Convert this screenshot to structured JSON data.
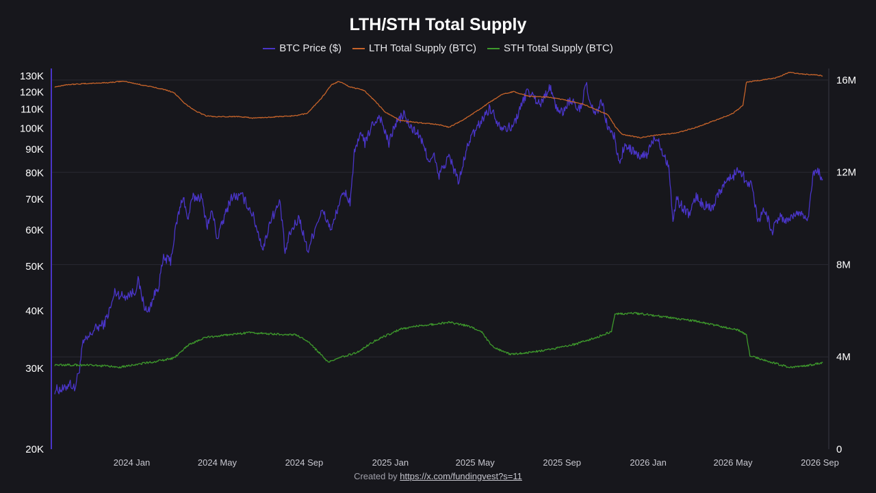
{
  "chart_data": {
    "type": "line",
    "title": "LTH/STH Total Supply",
    "x_ticks": [
      "2024 Jan",
      "2024 May",
      "2024 Sep",
      "2025 Jan",
      "2025 May",
      "2025 Sep",
      "2026 Jan",
      "2026 May",
      "2026 Sep"
    ],
    "y_left": {
      "scale": "log",
      "range": [
        20000,
        135000
      ],
      "ticks": [
        {
          "value": 20000,
          "label": "20K"
        },
        {
          "value": 30000,
          "label": "30K"
        },
        {
          "value": 40000,
          "label": "40K"
        },
        {
          "value": 50000,
          "label": "50K"
        },
        {
          "value": 60000,
          "label": "60K"
        },
        {
          "value": 70000,
          "label": "70K"
        },
        {
          "value": 80000,
          "label": "80K"
        },
        {
          "value": 90000,
          "label": "90K"
        },
        {
          "value": 100000,
          "label": "100K"
        },
        {
          "value": 110000,
          "label": "110K"
        },
        {
          "value": 120000,
          "label": "120K"
        },
        {
          "value": 130000,
          "label": "130K"
        }
      ]
    },
    "y_right": {
      "scale": "linear",
      "range": [
        0,
        16500000
      ],
      "ticks": [
        {
          "value": 0,
          "label": "0"
        },
        {
          "value": 4000000,
          "label": "4M"
        },
        {
          "value": 8000000,
          "label": "8M"
        },
        {
          "value": 12000000,
          "label": "12M"
        },
        {
          "value": 16000000,
          "label": "16M"
        }
      ]
    },
    "grid": "horizontal",
    "legend_position": "top-center",
    "series": [
      {
        "name": "BTC Price ($)",
        "axis": "left",
        "color": "#4a35c9",
        "points": [
          [
            "2023-09-14",
            27000
          ],
          [
            "2023-09-28",
            27000
          ],
          [
            "2023-10-05",
            28000
          ],
          [
            "2023-10-12",
            27000
          ],
          [
            "2023-10-19",
            30000
          ],
          [
            "2023-10-24",
            34000
          ],
          [
            "2023-11-01",
            35000
          ],
          [
            "2023-11-09",
            36500
          ],
          [
            "2023-11-16",
            37000
          ],
          [
            "2023-11-23",
            37500
          ],
          [
            "2023-12-04",
            41500
          ],
          [
            "2023-12-08",
            44000
          ],
          [
            "2023-12-20",
            43000
          ],
          [
            "2024-01-05",
            44000
          ],
          [
            "2024-01-10",
            46500
          ],
          [
            "2024-01-18",
            41500
          ],
          [
            "2024-01-23",
            39500
          ],
          [
            "2024-02-01",
            43000
          ],
          [
            "2024-02-08",
            45500
          ],
          [
            "2024-02-15",
            52000
          ],
          [
            "2024-02-25",
            51500
          ],
          [
            "2024-03-05",
            63000
          ],
          [
            "2024-03-14",
            71500
          ],
          [
            "2024-03-20",
            63000
          ],
          [
            "2024-03-27",
            70500
          ],
          [
            "2024-04-08",
            71000
          ],
          [
            "2024-04-17",
            61500
          ],
          [
            "2024-04-24",
            66000
          ],
          [
            "2024-05-01",
            57500
          ],
          [
            "2024-05-08",
            62000
          ],
          [
            "2024-05-21",
            71000
          ],
          [
            "2024-06-06",
            71000
          ],
          [
            "2024-06-20",
            65000
          ],
          [
            "2024-07-05",
            54500
          ],
          [
            "2024-07-15",
            63000
          ],
          [
            "2024-07-29",
            69000
          ],
          [
            "2024-08-05",
            53500
          ],
          [
            "2024-08-12",
            59000
          ],
          [
            "2024-08-25",
            64000
          ],
          [
            "2024-09-06",
            54000
          ],
          [
            "2024-09-20",
            63000
          ],
          [
            "2024-09-27",
            66000
          ],
          [
            "2024-10-10",
            60000
          ],
          [
            "2024-10-20",
            68500
          ],
          [
            "2024-10-29",
            72500
          ],
          [
            "2024-11-05",
            69000
          ],
          [
            "2024-11-11",
            88000
          ],
          [
            "2024-11-22",
            98500
          ],
          [
            "2024-11-26",
            92000
          ],
          [
            "2024-12-05",
            101000
          ],
          [
            "2024-12-17",
            106500
          ],
          [
            "2024-12-30",
            92500
          ],
          [
            "2025-01-07",
            101500
          ],
          [
            "2025-01-20",
            107500
          ],
          [
            "2025-01-28",
            101000
          ],
          [
            "2025-02-10",
            97000
          ],
          [
            "2025-02-26",
            84500
          ],
          [
            "2025-03-04",
            87000
          ],
          [
            "2025-03-10",
            78500
          ],
          [
            "2025-03-25",
            87000
          ],
          [
            "2025-04-08",
            76500
          ],
          [
            "2025-04-22",
            93500
          ],
          [
            "2025-05-10",
            104000
          ],
          [
            "2025-05-22",
            111000
          ],
          [
            "2025-06-05",
            101500
          ],
          [
            "2025-06-22",
            100000
          ],
          [
            "2025-07-03",
            109500
          ],
          [
            "2025-07-14",
            121000
          ],
          [
            "2025-07-25",
            116000
          ],
          [
            "2025-08-02",
            113000
          ],
          [
            "2025-08-14",
            123500
          ],
          [
            "2025-08-25",
            110500
          ],
          [
            "2025-09-01",
            108000
          ],
          [
            "2025-09-12",
            115500
          ],
          [
            "2025-09-26",
            109500
          ],
          [
            "2025-10-06",
            124500
          ],
          [
            "2025-10-11",
            111000
          ],
          [
            "2025-10-20",
            108000
          ],
          [
            "2025-10-27",
            114500
          ],
          [
            "2025-11-04",
            101500
          ],
          [
            "2025-11-14",
            95500
          ],
          [
            "2025-11-21",
            84000
          ],
          [
            "2025-11-28",
            91000
          ],
          [
            "2025-12-08",
            90000
          ],
          [
            "2025-12-18",
            86500
          ],
          [
            "2025-12-30",
            87500
          ],
          [
            "2026-01-06",
            93000
          ],
          [
            "2026-01-14",
            96000
          ],
          [
            "2026-01-20",
            90000
          ],
          [
            "2026-01-30",
            83000
          ],
          [
            "2026-02-05",
            63000
          ],
          [
            "2026-02-10",
            70000
          ],
          [
            "2026-02-20",
            67000
          ],
          [
            "2026-03-01",
            65000
          ],
          [
            "2026-03-10",
            71000
          ],
          [
            "2026-03-20",
            68000
          ],
          [
            "2026-04-01",
            67000
          ],
          [
            "2026-04-10",
            72000
          ],
          [
            "2026-04-20",
            76500
          ],
          [
            "2026-05-01",
            78500
          ],
          [
            "2026-05-10",
            82000
          ],
          [
            "2026-05-18",
            77500
          ],
          [
            "2026-05-28",
            75000
          ],
          [
            "2026-06-05",
            63000
          ],
          [
            "2026-06-15",
            67000
          ],
          [
            "2026-06-25",
            59500
          ],
          [
            "2026-07-05",
            64000
          ],
          [
            "2026-07-15",
            63000
          ],
          [
            "2026-07-25",
            64500
          ],
          [
            "2026-08-05",
            65500
          ],
          [
            "2026-08-15",
            63500
          ],
          [
            "2026-08-22",
            79000
          ],
          [
            "2026-08-28",
            81000
          ],
          [
            "2026-09-05",
            77500
          ]
        ]
      },
      {
        "name": "LTH Total Supply (BTC)",
        "axis": "right",
        "color": "#c8642a",
        "points": [
          [
            "2023-09-14",
            15700000
          ],
          [
            "2023-10-01",
            15800000
          ],
          [
            "2023-11-01",
            15850000
          ],
          [
            "2023-12-01",
            15890000
          ],
          [
            "2023-12-20",
            15950000
          ],
          [
            "2024-01-05",
            15850000
          ],
          [
            "2024-02-15",
            15600000
          ],
          [
            "2024-03-01",
            15450000
          ],
          [
            "2024-03-15",
            15000000
          ],
          [
            "2024-04-01",
            14650000
          ],
          [
            "2024-04-15",
            14450000
          ],
          [
            "2024-05-01",
            14400000
          ],
          [
            "2024-06-01",
            14420000
          ],
          [
            "2024-06-20",
            14350000
          ],
          [
            "2024-07-20",
            14400000
          ],
          [
            "2024-08-20",
            14450000
          ],
          [
            "2024-09-05",
            14550000
          ],
          [
            "2024-09-25",
            15200000
          ],
          [
            "2024-10-10",
            15800000
          ],
          [
            "2024-10-20",
            15940000
          ],
          [
            "2024-11-05",
            15700000
          ],
          [
            "2024-11-25",
            15550000
          ],
          [
            "2024-12-10",
            15100000
          ],
          [
            "2024-12-25",
            14600000
          ],
          [
            "2025-01-15",
            14250000
          ],
          [
            "2025-02-10",
            14150000
          ],
          [
            "2025-03-10",
            14070000
          ],
          [
            "2025-03-25",
            13950000
          ],
          [
            "2025-04-10",
            14200000
          ],
          [
            "2025-05-01",
            14600000
          ],
          [
            "2025-05-20",
            15000000
          ],
          [
            "2025-06-10",
            15400000
          ],
          [
            "2025-06-25",
            15500000
          ],
          [
            "2025-07-15",
            15300000
          ],
          [
            "2025-08-15",
            15250000
          ],
          [
            "2025-09-10",
            15100000
          ],
          [
            "2025-10-01",
            14950000
          ],
          [
            "2025-10-20",
            14700000
          ],
          [
            "2025-11-05",
            14500000
          ],
          [
            "2025-11-15",
            14000000
          ],
          [
            "2025-11-25",
            13650000
          ],
          [
            "2025-12-20",
            13500000
          ],
          [
            "2026-01-10",
            13600000
          ],
          [
            "2026-02-10",
            13700000
          ],
          [
            "2026-03-10",
            13950000
          ],
          [
            "2026-04-10",
            14300000
          ],
          [
            "2026-05-01",
            14550000
          ],
          [
            "2026-05-15",
            14900000
          ],
          [
            "2026-05-20",
            15900000
          ],
          [
            "2026-06-10",
            16000000
          ],
          [
            "2026-07-01",
            16100000
          ],
          [
            "2026-07-20",
            16330000
          ],
          [
            "2026-08-10",
            16250000
          ],
          [
            "2026-08-25",
            16230000
          ],
          [
            "2026-09-05",
            16180000
          ]
        ]
      },
      {
        "name": "STH Total Supply (BTC)",
        "axis": "right",
        "color": "#3e9a2c",
        "points": [
          [
            "2023-09-14",
            3650000
          ],
          [
            "2023-10-15",
            3650000
          ],
          [
            "2023-11-15",
            3620000
          ],
          [
            "2023-12-15",
            3560000
          ],
          [
            "2024-01-01",
            3650000
          ],
          [
            "2024-02-01",
            3780000
          ],
          [
            "2024-03-01",
            3950000
          ],
          [
            "2024-03-20",
            4500000
          ],
          [
            "2024-04-15",
            4850000
          ],
          [
            "2024-05-15",
            4950000
          ],
          [
            "2024-06-15",
            5050000
          ],
          [
            "2024-07-15",
            5000000
          ],
          [
            "2024-08-20",
            4950000
          ],
          [
            "2024-09-05",
            4700000
          ],
          [
            "2024-09-25",
            4100000
          ],
          [
            "2024-10-05",
            3750000
          ],
          [
            "2024-10-20",
            3950000
          ],
          [
            "2024-11-15",
            4200000
          ],
          [
            "2024-12-10",
            4700000
          ],
          [
            "2025-01-15",
            5200000
          ],
          [
            "2025-02-10",
            5350000
          ],
          [
            "2025-03-05",
            5420000
          ],
          [
            "2025-03-25",
            5500000
          ],
          [
            "2025-04-20",
            5350000
          ],
          [
            "2025-05-10",
            5100000
          ],
          [
            "2025-05-25",
            4450000
          ],
          [
            "2025-06-20",
            4100000
          ],
          [
            "2025-07-20",
            4200000
          ],
          [
            "2025-08-20",
            4350000
          ],
          [
            "2025-09-20",
            4550000
          ],
          [
            "2025-10-20",
            4850000
          ],
          [
            "2025-11-10",
            5100000
          ],
          [
            "2025-11-15",
            5850000
          ],
          [
            "2025-12-10",
            5900000
          ],
          [
            "2026-01-10",
            5800000
          ],
          [
            "2026-02-10",
            5650000
          ],
          [
            "2026-03-10",
            5550000
          ],
          [
            "2026-04-10",
            5350000
          ],
          [
            "2026-05-10",
            5150000
          ],
          [
            "2026-05-20",
            4950000
          ],
          [
            "2026-05-25",
            4050000
          ],
          [
            "2026-06-20",
            3800000
          ],
          [
            "2026-07-20",
            3550000
          ],
          [
            "2026-08-20",
            3650000
          ],
          [
            "2026-09-05",
            3750000
          ]
        ]
      }
    ]
  },
  "credit": {
    "prefix": "Created by ",
    "link": "https://x.com/fundingvest?s=11"
  }
}
